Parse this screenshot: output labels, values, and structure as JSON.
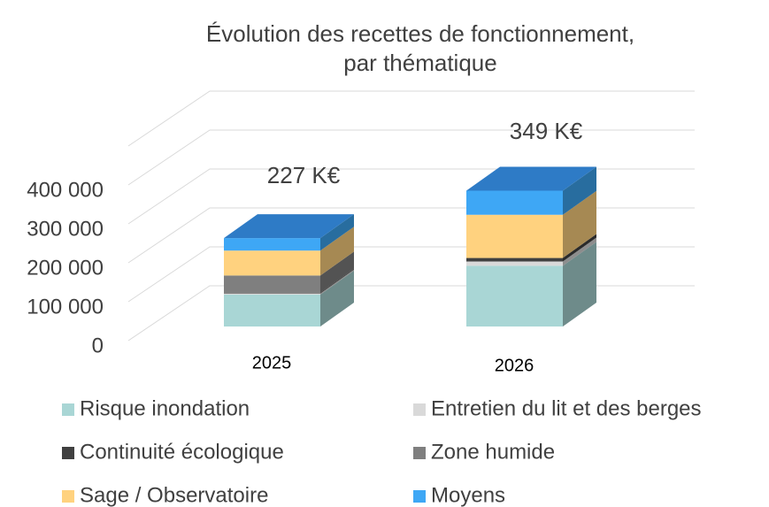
{
  "chart_data": {
    "type": "bar3d_stacked",
    "title": [
      "Évolution des recettes de fonctionnement,",
      "par thématique"
    ],
    "categories": [
      "2025",
      "2026"
    ],
    "annotations": [
      "227 K€",
      "349 K€"
    ],
    "series": [
      {
        "name": "Risque inondation",
        "color": "#a9d6d5",
        "values": [
          82000,
          156000
        ]
      },
      {
        "name": "Entretien du lit et des berges",
        "color": "#d9d9d9",
        "values": [
          3000,
          11000
        ]
      },
      {
        "name": "Continuité écologique",
        "color": "#404040",
        "values": [
          2000,
          9000
        ]
      },
      {
        "name": "Zone humide",
        "color": "#7f7f7f",
        "values": [
          44000,
          0
        ]
      },
      {
        "name": "Sage / Observatoire",
        "color": "#ffd27f",
        "values": [
          64000,
          111000
        ]
      },
      {
        "name": "Moyens",
        "color": "#3ea7f5",
        "values": [
          32000,
          62000
        ]
      }
    ],
    "ylim": [
      0,
      500000
    ],
    "yticks": [
      {
        "value": 0,
        "label": "0"
      },
      {
        "value": 100000,
        "label": "100 000"
      },
      {
        "value": 200000,
        "label": "200 000"
      },
      {
        "value": 300000,
        "label": "300 000"
      },
      {
        "value": 400000,
        "label": "400 000"
      }
    ],
    "grid": true
  }
}
